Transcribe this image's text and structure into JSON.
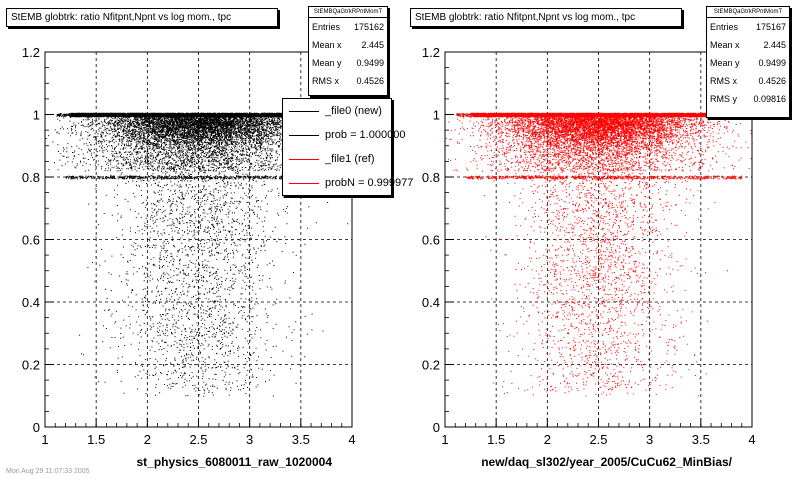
{
  "colors": {
    "new": "#000000",
    "ref": "#ff0000",
    "grid": "#000000"
  },
  "panels": [
    {
      "title": "StEMB globtrk: ratio Nfitpnt,Npnt vs log mom., tpc",
      "stats": {
        "name": "StEMBQaGtrkRPntMomT",
        "rows": [
          {
            "label": "Entries",
            "value": "175162"
          },
          {
            "label": "Mean x",
            "value": "2.445"
          },
          {
            "label": "Mean y",
            "value": "0.9499"
          },
          {
            "label": "RMS x",
            "value": "0.4526"
          }
        ]
      },
      "xlabel": "st_physics_6080011_raw_1020004",
      "legend": [
        {
          "label": "_file0 (new)",
          "color": "#000000"
        },
        {
          "label": "prob = 1.000000",
          "color": "#000000"
        },
        {
          "label": "_file1 (ref)",
          "color": "#ff0000"
        },
        {
          "label": "probN = 0.999977",
          "color": "#ff0000"
        }
      ]
    },
    {
      "title": "StEMB globtrk: ratio Nfitpnt,Npnt vs log mom., tpc",
      "stats": {
        "name": "StEMBQaGtrkRPntMomT",
        "rows": [
          {
            "label": "Entries",
            "value": "175167"
          },
          {
            "label": "Mean x",
            "value": "2.445"
          },
          {
            "label": "Mean y",
            "value": "0.9499"
          },
          {
            "label": "RMS x",
            "value": "0.4526"
          },
          {
            "label": "RMS y",
            "value": "0.09816"
          }
        ]
      },
      "xlabel": "new/daq_sl302/year_2005/CuCu62_MinBias/"
    }
  ],
  "footnote": "Mon Aug 29 11:07:33 2005",
  "chart_data": [
    {
      "type": "scatter",
      "title": "StEMB globtrk: ratio Nfitpnt,Npnt vs log mom., tpc",
      "xlabel": "st_physics_6080011_raw_1020004",
      "ylabel": "",
      "xlim": [
        1,
        4
      ],
      "ylim": [
        0,
        1.2
      ],
      "xticks": [
        "1",
        "1.5",
        "2",
        "2.5",
        "3",
        "3.5",
        "4"
      ],
      "yticks": [
        "0",
        "0.2",
        "0.4",
        "0.6",
        "0.8",
        "1",
        "1.2"
      ],
      "grid": true,
      "series": [
        {
          "name": "_file0 (new)",
          "color": "#000000",
          "dense_band": {
            "y": 1.0,
            "x_range": [
              1.25,
              3.6
            ]
          },
          "secondary_band": {
            "y": 0.8,
            "x_range": [
              1.2,
              3.9
            ]
          },
          "scatter_region": {
            "x_range": [
              1.2,
              3.8
            ],
            "y_range": [
              0.1,
              1.0
            ],
            "x_center": 2.5
          }
        }
      ],
      "stats": {
        "entries": 175162,
        "mean_x": 2.445,
        "mean_y": 0.9499,
        "rms_x": 0.4526
      }
    },
    {
      "type": "scatter",
      "title": "StEMB globtrk: ratio Nfitpnt,Npnt vs log mom., tpc",
      "xlabel": "new/daq_sl302/year_2005/CuCu62_MinBias/",
      "ylabel": "",
      "xlim": [
        1,
        4
      ],
      "ylim": [
        0,
        1.2
      ],
      "xticks": [
        "1",
        "1.5",
        "2",
        "2.5",
        "3",
        "3.5",
        "4"
      ],
      "yticks": [
        "0",
        "0.2",
        "0.4",
        "0.6",
        "0.8",
        "1",
        "1.2"
      ],
      "grid": true,
      "series": [
        {
          "name": "_file1 (ref)",
          "color": "#ff0000",
          "dense_band": {
            "y": 1.0,
            "x_range": [
              1.25,
              3.6
            ]
          },
          "secondary_band": {
            "y": 0.8,
            "x_range": [
              1.2,
              3.9
            ]
          },
          "scatter_region": {
            "x_range": [
              1.2,
              3.8
            ],
            "y_range": [
              0.1,
              1.0
            ],
            "x_center": 2.5
          }
        }
      ],
      "stats": {
        "entries": 175167,
        "mean_x": 2.445,
        "mean_y": 0.9499,
        "rms_x": 0.4526,
        "rms_y": 0.09816
      }
    }
  ]
}
